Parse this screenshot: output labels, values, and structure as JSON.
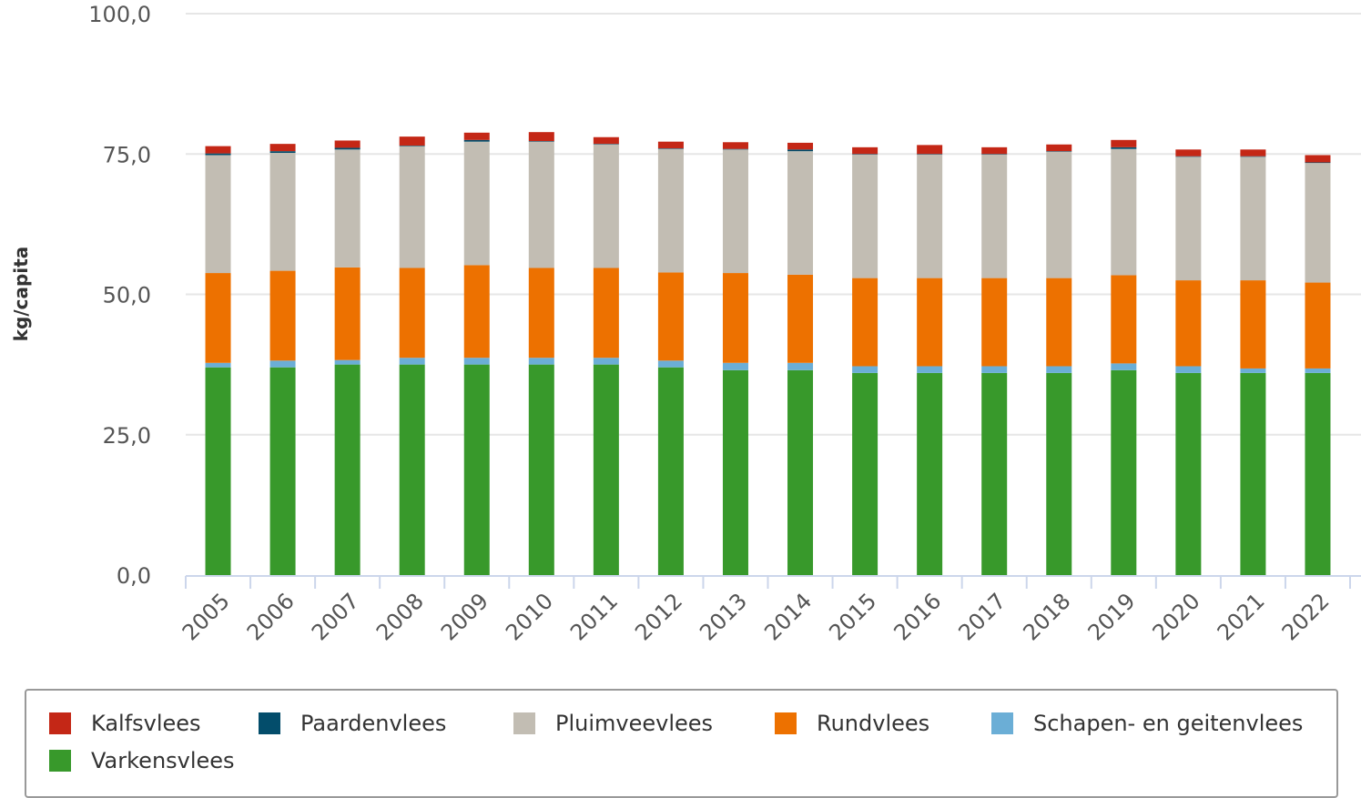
{
  "chart_data": {
    "type": "bar",
    "stacked": true,
    "title": "",
    "xlabel": "",
    "ylabel": "kg/capita",
    "ylim": [
      0,
      100
    ],
    "yticks": [
      "0,0",
      "25,0",
      "50,0",
      "75,0",
      "100,0"
    ],
    "grid": true,
    "legend_position": "bottom",
    "categories": [
      "2005",
      "2006",
      "2007",
      "2008",
      "2009",
      "2010",
      "2011",
      "2012",
      "2013",
      "2014",
      "2015",
      "2016",
      "2017",
      "2018",
      "2019",
      "2020",
      "2021",
      "2022"
    ],
    "series": [
      {
        "name": "Varkensvlees",
        "color": "#38992b",
        "values": [
          37.0,
          37.0,
          37.5,
          37.5,
          37.5,
          37.5,
          37.5,
          37.0,
          36.5,
          36.5,
          36.0,
          36.0,
          36.0,
          36.0,
          36.5,
          36.0,
          36.0,
          36.0
        ]
      },
      {
        "name": "Schapen- en geitenvlees",
        "color": "#6baed6",
        "values": [
          0.8,
          1.2,
          0.8,
          1.2,
          1.2,
          1.2,
          1.2,
          1.2,
          1.3,
          1.3,
          1.2,
          1.2,
          1.2,
          1.2,
          1.2,
          1.2,
          0.8,
          0.8
        ]
      },
      {
        "name": "Rundvlees",
        "color": "#ed7100",
        "values": [
          16.0,
          16.0,
          16.5,
          16.0,
          16.5,
          16.0,
          16.0,
          15.7,
          16.0,
          15.7,
          15.7,
          15.7,
          15.7,
          15.7,
          15.7,
          15.3,
          15.7,
          15.3
        ]
      },
      {
        "name": "Pluimveevlees",
        "color": "#c2bdb3",
        "values": [
          21.0,
          21.0,
          21.0,
          21.7,
          22.0,
          22.5,
          22.0,
          22.0,
          22.0,
          22.0,
          22.0,
          22.0,
          22.0,
          22.5,
          22.5,
          22.0,
          22.0,
          21.3
        ]
      },
      {
        "name": "Paardenvlees",
        "color": "#034d6b",
        "values": [
          0.3,
          0.3,
          0.3,
          0.1,
          0.3,
          0.1,
          0.1,
          0.1,
          0.1,
          0.3,
          0.1,
          0.1,
          0.1,
          0.1,
          0.3,
          0.1,
          0.1,
          0.1
        ]
      },
      {
        "name": "Kalfsvlees",
        "color": "#c42716",
        "values": [
          1.3,
          1.3,
          1.3,
          1.6,
          1.3,
          1.6,
          1.2,
          1.2,
          1.2,
          1.2,
          1.2,
          1.6,
          1.2,
          1.2,
          1.3,
          1.2,
          1.2,
          1.3
        ]
      }
    ],
    "legend_order": [
      "Kalfsvlees",
      "Paardenvlees",
      "Pluimveevlees",
      "Rundvlees",
      "Schapen- en geitenvlees",
      "Varkensvlees"
    ]
  }
}
